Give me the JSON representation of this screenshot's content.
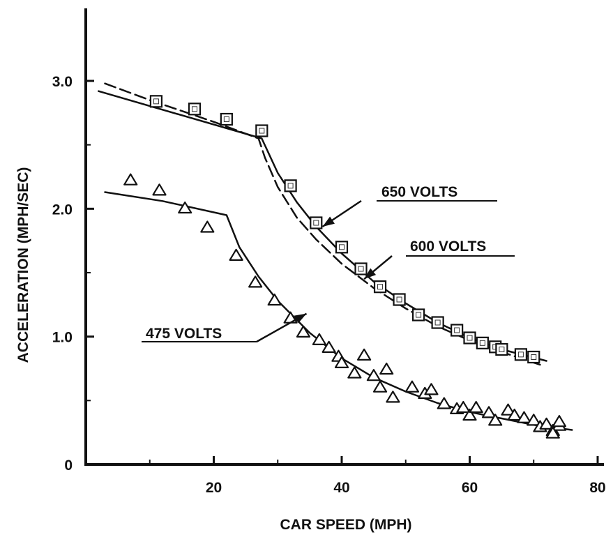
{
  "chart_data": {
    "type": "scatter",
    "title": "",
    "xlabel": "CAR SPEED (MPH)",
    "ylabel": "ACCELERATION (MPH/SEC)",
    "xlim": [
      0,
      80
    ],
    "ylim": [
      0,
      3.5
    ],
    "xticks": [
      "20",
      "40",
      "60",
      "80"
    ],
    "yticks": [
      "0",
      "1.0",
      "2.0",
      "3.0"
    ],
    "grid": false,
    "series": [
      {
        "marker": "square",
        "points": [
          [
            11,
            2.84
          ],
          [
            17,
            2.78
          ],
          [
            22,
            2.7
          ],
          [
            27.5,
            2.61
          ],
          [
            32,
            2.18
          ],
          [
            36,
            1.89
          ],
          [
            40,
            1.7
          ],
          [
            43,
            1.53
          ],
          [
            46,
            1.39
          ],
          [
            49,
            1.29
          ],
          [
            52,
            1.17
          ],
          [
            55,
            1.11
          ],
          [
            58,
            1.05
          ],
          [
            60,
            0.99
          ],
          [
            62,
            0.95
          ],
          [
            64,
            0.92
          ],
          [
            65,
            0.9
          ],
          [
            68,
            0.86
          ],
          [
            70,
            0.84
          ]
        ]
      },
      {
        "marker": "triangle",
        "points": [
          [
            7,
            2.22
          ],
          [
            11.5,
            2.14
          ],
          [
            15.5,
            2.0
          ],
          [
            19,
            1.85
          ],
          [
            23.5,
            1.63
          ],
          [
            26.5,
            1.42
          ],
          [
            29.5,
            1.28
          ],
          [
            32,
            1.14
          ],
          [
            34,
            1.03
          ],
          [
            36.5,
            0.97
          ],
          [
            38,
            0.91
          ],
          [
            39.5,
            0.84
          ],
          [
            40,
            0.79
          ],
          [
            42,
            0.71
          ],
          [
            43.5,
            0.85
          ],
          [
            45,
            0.69
          ],
          [
            46,
            0.6
          ],
          [
            47,
            0.74
          ],
          [
            48,
            0.52
          ],
          [
            51,
            0.6
          ],
          [
            53,
            0.55
          ],
          [
            54,
            0.58
          ],
          [
            56,
            0.47
          ],
          [
            58,
            0.43
          ],
          [
            59,
            0.44
          ],
          [
            60,
            0.38
          ],
          [
            61,
            0.44
          ],
          [
            63,
            0.4
          ],
          [
            64,
            0.34
          ],
          [
            66,
            0.42
          ],
          [
            67,
            0.38
          ],
          [
            68.5,
            0.36
          ],
          [
            70,
            0.34
          ],
          [
            71,
            0.29
          ],
          [
            72,
            0.31
          ],
          [
            73,
            0.26
          ],
          [
            74,
            0.3
          ],
          [
            74,
            0.33
          ],
          [
            73,
            0.24
          ]
        ]
      }
    ],
    "curves": [
      {
        "label": "650 VOLTS",
        "style": "solid",
        "points": [
          [
            2,
            2.92
          ],
          [
            27.5,
            2.55
          ],
          [
            30,
            2.28
          ],
          [
            33,
            2.05
          ],
          [
            36,
            1.86
          ],
          [
            40,
            1.65
          ],
          [
            45,
            1.43
          ],
          [
            50,
            1.26
          ],
          [
            55,
            1.11
          ],
          [
            60,
            0.99
          ],
          [
            65,
            0.9
          ],
          [
            72,
            0.81
          ]
        ]
      },
      {
        "label": "600 VOLTS",
        "style": "dashed",
        "points": [
          [
            3,
            2.98
          ],
          [
            10,
            2.85
          ],
          [
            20,
            2.68
          ],
          [
            27,
            2.55
          ],
          [
            28,
            2.4
          ],
          [
            30,
            2.17
          ],
          [
            33,
            1.93
          ],
          [
            36,
            1.76
          ],
          [
            40,
            1.57
          ],
          [
            45,
            1.38
          ],
          [
            50,
            1.22
          ],
          [
            55,
            1.08
          ],
          [
            60,
            0.97
          ],
          [
            65,
            0.88
          ],
          [
            71,
            0.78
          ]
        ]
      },
      {
        "label": "475 VOLTS",
        "style": "solid",
        "points": [
          [
            3,
            2.13
          ],
          [
            12,
            2.06
          ],
          [
            22,
            1.95
          ],
          [
            24,
            1.7
          ],
          [
            27,
            1.47
          ],
          [
            30,
            1.28
          ],
          [
            35,
            1.03
          ],
          [
            40,
            0.83
          ],
          [
            45,
            0.68
          ],
          [
            50,
            0.57
          ],
          [
            55,
            0.48
          ],
          [
            60,
            0.41
          ],
          [
            65,
            0.36
          ],
          [
            70,
            0.31
          ],
          [
            76,
            0.27
          ]
        ]
      }
    ],
    "annotations": [
      {
        "text": "650 VOLTS",
        "target": [
          37,
          1.86
        ]
      },
      {
        "text": "600 VOLTS",
        "target": [
          43.5,
          1.45
        ]
      },
      {
        "text": "475 VOLTS",
        "target": [
          34.5,
          1.18
        ]
      }
    ]
  }
}
